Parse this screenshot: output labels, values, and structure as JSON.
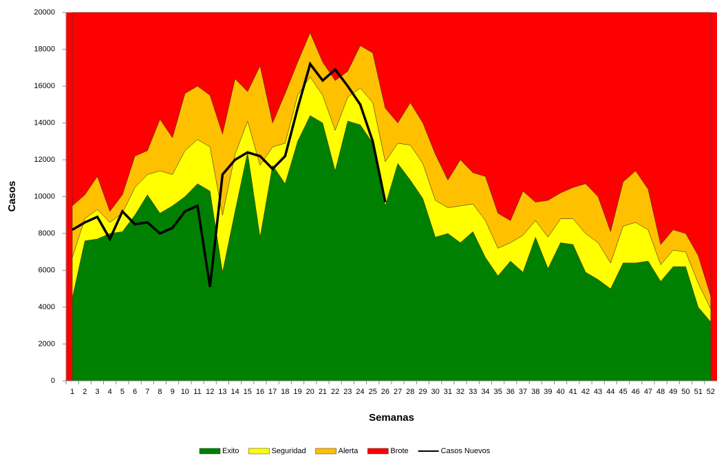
{
  "chart_data": {
    "type": "area",
    "stacked": true,
    "x_label": "Semanas",
    "y_label": "Casos",
    "categories": [
      "1",
      "2",
      "3",
      "4",
      "5",
      "6",
      "7",
      "8",
      "9",
      "10",
      "11",
      "12",
      "13",
      "14",
      "15",
      "16",
      "17",
      "18",
      "19",
      "20",
      "21",
      "22",
      "23",
      "24",
      "25",
      "26",
      "27",
      "28",
      "29",
      "30",
      "31",
      "32",
      "33",
      "34",
      "35",
      "36",
      "37",
      "38",
      "39",
      "40",
      "41",
      "42",
      "43",
      "44",
      "45",
      "46",
      "47",
      "48",
      "49",
      "50",
      "51",
      "52"
    ],
    "ylim": [
      0,
      20000
    ],
    "yticks": [
      0,
      2000,
      4000,
      6000,
      8000,
      10000,
      12000,
      14000,
      16000,
      18000,
      20000
    ],
    "grid": false,
    "legend": "bottom",
    "series": [
      {
        "name": "Exito",
        "color": "#008000",
        "values": [
          4500,
          7600,
          7700,
          8000,
          8100,
          9000,
          10100,
          9100,
          9500,
          10000,
          10700,
          10300,
          5900,
          9200,
          12400,
          7800,
          11700,
          10700,
          13000,
          14400,
          14000,
          11400,
          14100,
          13900,
          12900,
          9500,
          11800,
          10900,
          9900,
          7800,
          8000,
          7500,
          8100,
          6700,
          5700,
          6500,
          5900,
          7800,
          6100,
          7500,
          7400,
          5900,
          5500,
          5000,
          6400,
          6400,
          6500,
          5400,
          6200,
          6200,
          4000,
          3200
        ]
      },
      {
        "name": "Seguridad",
        "color": "#ffff00",
        "values": [
          2200,
          1200,
          1600,
          600,
          1000,
          1500,
          1100,
          2300,
          1700,
          2500,
          2400,
          2400,
          3100,
          3100,
          1700,
          3900,
          1000,
          2200,
          2500,
          2100,
          1500,
          2200,
          1300,
          2000,
          2200,
          2400,
          1100,
          1900,
          1900,
          2000,
          1400,
          2000,
          1500,
          2000,
          1500,
          1000,
          2000,
          900,
          1700,
          1300,
          1400,
          2100,
          2000,
          1400,
          2000,
          2200,
          1700,
          900,
          900,
          800,
          1300,
          700
        ]
      },
      {
        "name": "Alerta",
        "color": "#ffc000",
        "values": [
          2800,
          1300,
          1800,
          600,
          1000,
          1700,
          1300,
          2800,
          2000,
          3100,
          2900,
          2800,
          4400,
          4100,
          1600,
          5400,
          1300,
          2700,
          1800,
          2400,
          1800,
          2700,
          1400,
          2300,
          2700,
          2900,
          1100,
          2300,
          2200,
          2500,
          1500,
          2500,
          1700,
          2400,
          1900,
          1200,
          2400,
          1000,
          2000,
          1400,
          1700,
          2700,
          2500,
          1700,
          2400,
          2800,
          2200,
          1100,
          1100,
          1000,
          1500,
          700
        ]
      },
      {
        "name": "Brote",
        "color": "#ff0000",
        "values": [
          10500,
          9900,
          8900,
          10800,
          9900,
          7800,
          7500,
          5800,
          6800,
          4400,
          4000,
          4500,
          6600,
          3600,
          4300,
          2900,
          6000,
          4400,
          2700,
          1100,
          2700,
          3700,
          3200,
          1800,
          2200,
          5200,
          6000,
          4900,
          6000,
          7700,
          9100,
          8000,
          8700,
          8900,
          10900,
          11300,
          9700,
          10300,
          10200,
          9800,
          9500,
          9300,
          10000,
          11900,
          9200,
          8600,
          9600,
          12600,
          11800,
          12000,
          13200,
          15400
        ]
      },
      {
        "name": "Casos Nuevos",
        "color": "#000000",
        "type": "line",
        "values": [
          8200,
          8600,
          8900,
          7700,
          9200,
          8500,
          8600,
          8000,
          8300,
          9200,
          9500,
          5100,
          11200,
          12000,
          12400,
          12200,
          11500,
          12200,
          14800,
          17200,
          16300,
          16900,
          16000,
          15000,
          13000,
          9700,
          null,
          null,
          null,
          null,
          null,
          null,
          null,
          null,
          null,
          null,
          null,
          null,
          null,
          null,
          null,
          null,
          null,
          null,
          null,
          null,
          null,
          null,
          null,
          null,
          null,
          null
        ]
      }
    ]
  }
}
